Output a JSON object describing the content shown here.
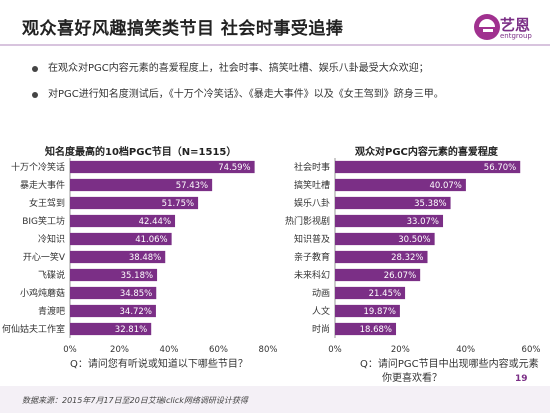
{
  "header": {
    "title": "观众喜好风趣搞笑类节目  社会时事受追捧",
    "logo_text": "艺恩",
    "logo_sub": "entgroup"
  },
  "bullets": [
    "在观众对PGC内容元素的喜爱程度上，社会时事、搞笑吐槽、娱乐八卦最受大众欢迎；",
    "对PGC进行知名度测试后，《十万个冷笑话》、《暴走大事件》以及《女王驾到》跻身三甲。"
  ],
  "chart_data": [
    {
      "type": "bar",
      "orientation": "horizontal",
      "title": "知名度最高的10档PGC节目（N=1515）",
      "categories": [
        "十万个冷笑话",
        "暴走大事件",
        "女王驾到",
        "BIG笑工坊",
        "冷知识",
        "开心一笑V",
        "飞碟说",
        "小鸡炖蘑菇",
        "青渡吧",
        "何仙姑夫工作室"
      ],
      "values": [
        74.59,
        57.43,
        51.75,
        42.44,
        41.06,
        38.48,
        35.18,
        34.85,
        34.72,
        32.81
      ],
      "value_labels": [
        "74.59%",
        "57.43%",
        "51.75%",
        "42.44%",
        "41.06%",
        "38.48%",
        "35.18%",
        "34.85%",
        "34.72%",
        "32.81%"
      ],
      "xlim": [
        0,
        80
      ],
      "ticks": [
        "0%",
        "20%",
        "40%",
        "60%",
        "80%"
      ],
      "question": "Q：请问您有听说或知道以下哪些节目？",
      "color": "#7b2f86"
    },
    {
      "type": "bar",
      "orientation": "horizontal",
      "title": "观众对PGC内容元素的喜爱程度",
      "categories": [
        "社会时事",
        "搞笑吐槽",
        "娱乐八卦",
        "热门影视剧",
        "知识普及",
        "亲子教育",
        "未来科幻",
        "动画",
        "人文",
        "时尚"
      ],
      "values": [
        56.7,
        40.07,
        35.38,
        33.07,
        30.5,
        28.32,
        26.07,
        21.45,
        19.87,
        18.68
      ],
      "value_labels": [
        "56.70%",
        "40.07%",
        "35.38%",
        "33.07%",
        "30.50%",
        "28.32%",
        "26.07%",
        "21.45%",
        "19.87%",
        "18.68%"
      ],
      "xlim": [
        0,
        60
      ],
      "ticks": [
        "0%",
        "20%",
        "40%",
        "60%"
      ],
      "question_lines": [
        "Q：请问PGC节目中出现哪些内容或元素",
        "你更喜欢看？"
      ],
      "color": "#7b2f86"
    }
  ],
  "footer": {
    "source": "数据来源：2015年7月17日至20日艾瑞iclick网络调研设计获得",
    "page": "19"
  }
}
